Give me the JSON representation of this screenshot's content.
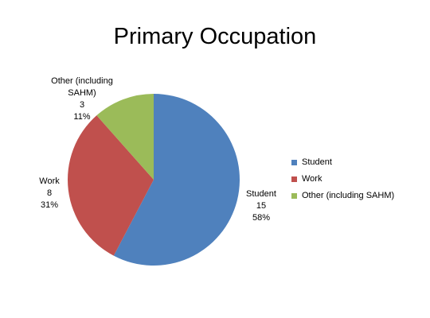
{
  "chart_data": {
    "type": "pie",
    "title": "Primary Occupation",
    "slices": [
      {
        "label": "Student",
        "value": 15,
        "percent": "58%",
        "color": "#4F81BD"
      },
      {
        "label": "Work",
        "value": 8,
        "percent": "31%",
        "color": "#C0504D"
      },
      {
        "label": "Other (including SAHM)",
        "value": 3,
        "percent": "11%",
        "color": "#9BBB59"
      }
    ],
    "data_labels": [
      {
        "lines": [
          "Student",
          "15",
          "58%"
        ]
      },
      {
        "lines": [
          "Work",
          "8",
          "31%"
        ]
      },
      {
        "lines": [
          "Other (including",
          "SAHM)",
          "3",
          "11%"
        ]
      }
    ],
    "legend": {
      "position": "right",
      "entries": [
        "Student",
        "Work",
        "Other (including SAHM)"
      ]
    }
  }
}
